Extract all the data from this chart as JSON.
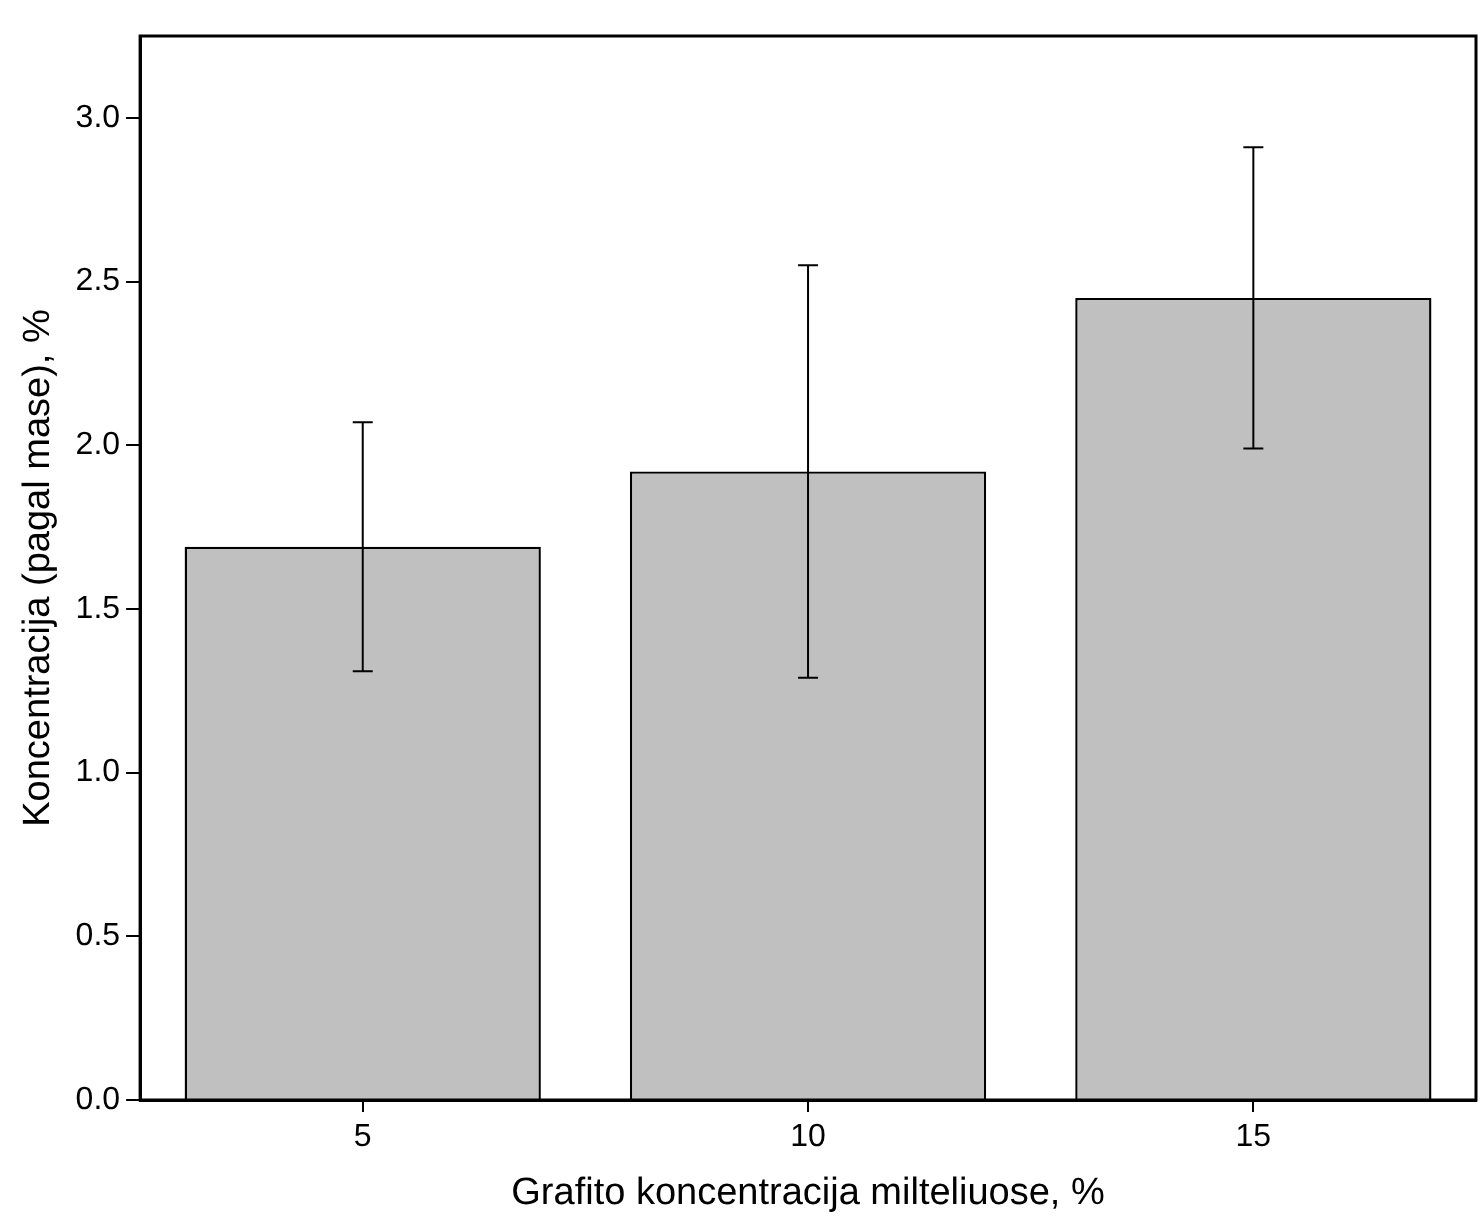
{
  "chart_data": {
    "type": "bar",
    "xlabel": "Grafito koncentracija milteliuose, %",
    "ylabel": "Koncentracija (pagal mase), %",
    "categories": [
      "5",
      "10",
      "15"
    ],
    "values": [
      1.69,
      1.92,
      2.45
    ],
    "errors": [
      0.38,
      0.63,
      0.46
    ],
    "color": "#c0c0c0",
    "ylim": [
      0,
      3.25
    ],
    "yticks": [
      {
        "value": 0,
        "label": "0.0"
      },
      {
        "value": 0.5,
        "label": "0.5"
      },
      {
        "value": 1,
        "label": "1.0"
      },
      {
        "value": 1.5,
        "label": "1.5"
      },
      {
        "value": 2,
        "label": "2.0"
      },
      {
        "value": 2.5,
        "label": "2.5"
      },
      {
        "value": 3,
        "label": "3.0"
      }
    ],
    "grid": false,
    "legend": false
  }
}
